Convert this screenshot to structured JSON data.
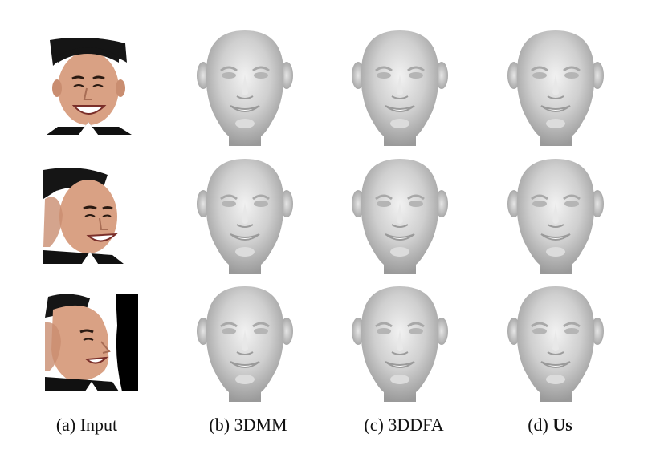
{
  "figure": {
    "captions": [
      {
        "prefix": "(a) ",
        "name": "Input",
        "bold": false
      },
      {
        "prefix": "(b) ",
        "name": "3DMM",
        "bold": false
      },
      {
        "prefix": "(c) ",
        "name": "3DDFA",
        "bold": false
      },
      {
        "prefix": "(d) ",
        "name": "Us",
        "bold": true
      }
    ],
    "rows": [
      {
        "pose": "frontal"
      },
      {
        "pose": "half-profile"
      },
      {
        "pose": "profile"
      }
    ],
    "colors": {
      "background": "#ffffff",
      "mesh_gray": "#c9c9c9",
      "skin": "#d9a58c",
      "hair": "#1a1a1a",
      "suit": "#111111"
    }
  }
}
